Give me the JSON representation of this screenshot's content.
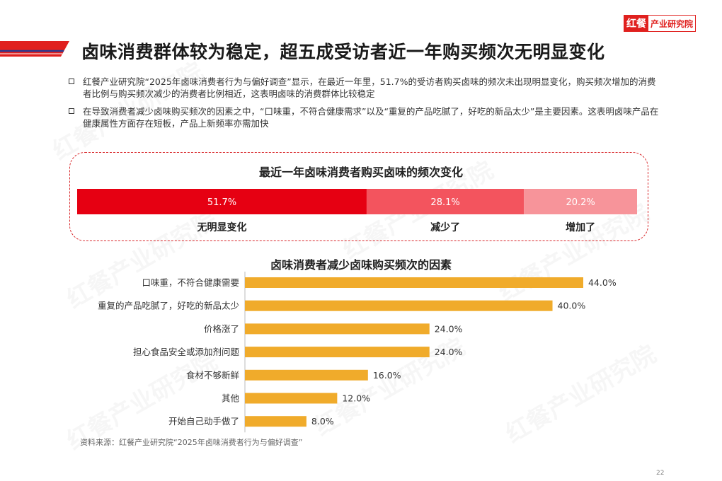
{
  "logo": {
    "brand": "红餐",
    "text": "产业研究院"
  },
  "page_title": "卤味消费群体较为稳定，超五成受访者近一年购买频次无明显变化",
  "bullets": [
    "红餐产业研究院“2025年卤味消费者行为与偏好调查”显示，在最近一年里，51.7%的受访者购买卤味的频次未出现明显变化，购买频次增加的消费者比例与购买频次减少的消费者比例相近，这表明卤味的消费群体比较稳定",
    "在导致消费者减少卤味购买频次的因素之中，“口味重，不符合健康需求”以及“重复的产品吃腻了，好吃的新品太少”是主要因素。这表明卤味产品在健康属性方面存在短板，产品上新频率亦需加快"
  ],
  "source": "资料来源：红餐产业研究院“2025年卤味消费者行为与偏好调查”",
  "page_number": "22",
  "watermark": "红餐产业研究院",
  "colors": {
    "brand_red": "#e0201e",
    "stack": [
      "#e60012",
      "#f3545e",
      "#f7949a"
    ],
    "bar": "#f0ab2b"
  },
  "chart_data": [
    {
      "type": "bar",
      "stacked": true,
      "orientation": "horizontal",
      "title": "最近一年卤味消费者购买卤味的频次变化",
      "series": [
        {
          "name": "无明显变化",
          "value": 51.7,
          "label": "51.7%"
        },
        {
          "name": "减少了",
          "value": 28.1,
          "label": "28.1%"
        },
        {
          "name": "增加了",
          "value": 20.2,
          "label": "20.2%"
        }
      ]
    },
    {
      "type": "bar",
      "orientation": "horizontal",
      "title": "卤味消费者减少卤味购买频次的因素",
      "categories": [
        "口味重，不符合健康需要",
        "重复的产品吃腻了，好吃的新品太少",
        "价格涨了",
        "担心食品安全或添加剂问题",
        "食材不够新鲜",
        "其他",
        "开始自己动手做了"
      ],
      "values": [
        44.0,
        40.0,
        24.0,
        24.0,
        16.0,
        12.0,
        8.0
      ],
      "labels": [
        "44.0%",
        "40.0%",
        "24.0%",
        "24.0%",
        "16.0%",
        "12.0%",
        "8.0%"
      ],
      "xlim": [
        0,
        50
      ]
    }
  ]
}
